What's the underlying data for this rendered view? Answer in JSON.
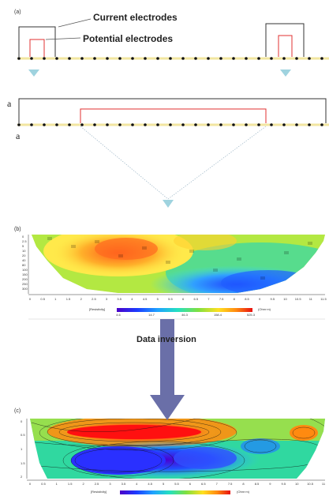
{
  "panels": {
    "a_label": "(a)",
    "b_label": "(b)",
    "c_label": "(c)"
  },
  "electrodes": {
    "current_label": "Current electrodes",
    "potential_label": "Potential electrodes",
    "spacing_label": "a",
    "spacing_label_lower": "a"
  },
  "inversion": {
    "label": "Data inversion"
  },
  "section_b": {
    "depth_ticks": [
      "0",
      "0.5",
      "1",
      "1.5",
      "2",
      "2.5",
      "3",
      "3.5",
      "4",
      "4.5",
      "5",
      "5.5",
      "6",
      "6.5",
      "7",
      "7.5",
      "8",
      "8.5",
      "9",
      "9.5",
      "10",
      "10.5",
      "11",
      "11.5"
    ],
    "colorbar_label": "[Resistivity]",
    "colorbar_values": [
      "4.6",
      "14.7",
      "46.3",
      "158.4",
      "525.3"
    ],
    "unit": "(Ohm·m)"
  },
  "section_c": {
    "depth_ticks": [
      "0",
      "0.5",
      "1",
      "1.5",
      "2",
      "2.5",
      "3",
      "3.5",
      "4",
      "4.5",
      "5",
      "5.5",
      "6",
      "6.5",
      "7",
      "7.5",
      "8",
      "8.5",
      "9",
      "9.5",
      "10",
      "10.5",
      "11"
    ],
    "colorbar_label": "[Resistivity]",
    "unit": "(Ohm·m)"
  },
  "colors": {
    "line_yellow": "#f2e6a0",
    "current_wire": "#333333",
    "potential_wire": "#e03030",
    "triangle": "#9fd3df",
    "arrow": "#6a6fa8"
  }
}
